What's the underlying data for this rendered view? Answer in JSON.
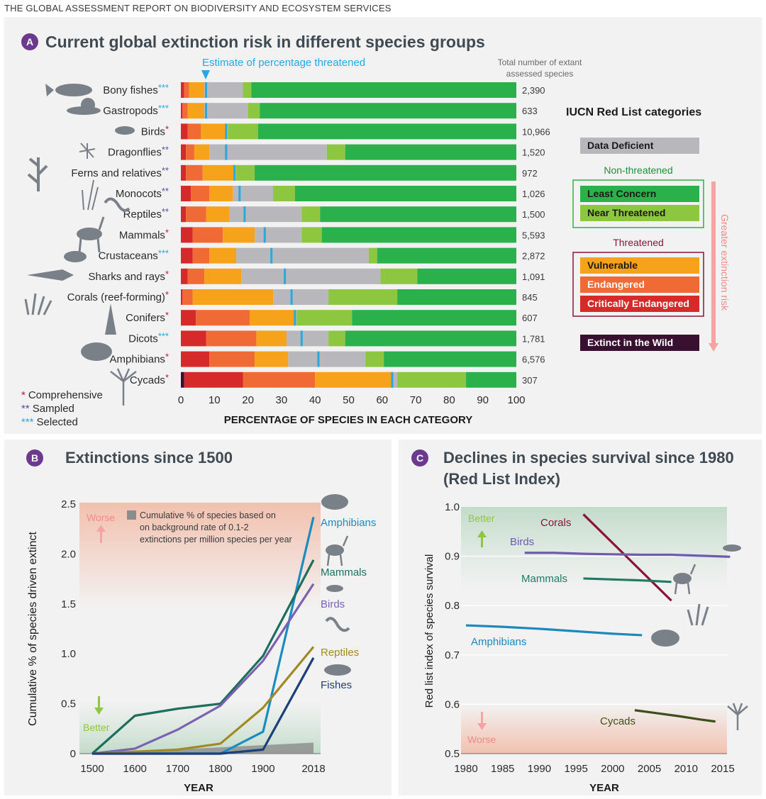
{
  "report_title": "THE GLOBAL ASSESSMENT REPORT ON BIODIVERSITY AND ECOSYSTEM SERVICES",
  "colors": {
    "panel_bg": "#f2f2f2",
    "badge": "#6b3a8e",
    "title": "#3f4a52",
    "data_deficient": "#b8b8bc",
    "least_concern": "#2bb14b",
    "near_threatened": "#8dc63f",
    "vulnerable": "#f7a21b",
    "endangered": "#f06a35",
    "critically_endangered": "#d62a2a",
    "extinct_in_wild": "#3a1030",
    "estimate_marker": "#27a8e0",
    "star_red": "#c0182b",
    "star_purple": "#5b4fa0",
    "star_cyan": "#27a8e0"
  },
  "chart_data": [
    {
      "id": "A",
      "type": "bar",
      "orientation": "horizontal-stacked-100",
      "badge": "A",
      "title": "Current global extinction risk in different species groups",
      "xlabel": "PERCENTAGE OF SPECIES IN EACH CATEGORY",
      "xlim": [
        0,
        100
      ],
      "x_ticks": [
        "0",
        "10",
        "20",
        "30",
        "40",
        "50",
        "60",
        "70",
        "80",
        "90",
        "100"
      ],
      "estimate_label": "Estimate of percentage threatened",
      "count_header": "Total number of extant assessed species",
      "legend_title": "IUCN Red List categories",
      "legend_groups": {
        "non_threatened": "Non-threatened",
        "threatened": "Threatened",
        "risk_axis": "Greater extinction risk"
      },
      "category_keys": [
        "EW",
        "CR",
        "EN",
        "VU",
        "DD",
        "NT",
        "LC"
      ],
      "category_labels": {
        "DD": "Data Deficient",
        "LC": "Least Concern",
        "NT": "Near Threatened",
        "VU": "Vulnerable",
        "EN": "Endangered",
        "CR": "Critically Endangered",
        "EW": "Extinct in the Wild"
      },
      "groups": [
        {
          "name": "Bony fishes",
          "stars": "***",
          "count": "2,390",
          "estimate": 7.5,
          "EW": 0,
          "CR": 1.0,
          "EN": 1.5,
          "VU": 4.5,
          "DD": 11.5,
          "NT": 2.5,
          "LC": 79.0
        },
        {
          "name": "Gastropods",
          "stars": "***",
          "count": "633",
          "estimate": 7.5,
          "EW": 0,
          "CR": 0.5,
          "EN": 1.5,
          "VU": 5.0,
          "DD": 13.0,
          "NT": 3.5,
          "LC": 76.5
        },
        {
          "name": "Birds",
          "stars": "*",
          "count": "10,966",
          "estimate": 13.5,
          "EW": 0,
          "CR": 2.0,
          "EN": 4.0,
          "VU": 7.5,
          "DD": 0.5,
          "NT": 9.0,
          "LC": 77.0
        },
        {
          "name": "Dragonflies",
          "stars": "**",
          "count": "1,520",
          "estimate": 13.5,
          "EW": 0,
          "CR": 1.5,
          "EN": 2.5,
          "VU": 4.5,
          "DD": 35.0,
          "NT": 5.5,
          "LC": 51.0
        },
        {
          "name": "Ferns and relatives",
          "stars": "**",
          "count": "972",
          "estimate": 16.0,
          "EW": 0,
          "CR": 1.5,
          "EN": 5.0,
          "VU": 9.5,
          "DD": 0.5,
          "NT": 5.5,
          "LC": 78.0
        },
        {
          "name": "Monocots",
          "stars": "**",
          "count": "1,026",
          "estimate": 17.5,
          "EW": 0,
          "CR": 3.0,
          "EN": 5.5,
          "VU": 7.0,
          "DD": 12.0,
          "NT": 6.5,
          "LC": 66.0
        },
        {
          "name": "Reptiles",
          "stars": "**",
          "count": "1,500",
          "estimate": 19.0,
          "EW": 0,
          "CR": 1.5,
          "EN": 6.0,
          "VU": 7.0,
          "DD": 21.5,
          "NT": 5.5,
          "LC": 58.5
        },
        {
          "name": "Mammals",
          "stars": "*",
          "count": "5,593",
          "estimate": 25.0,
          "EW": 0,
          "CR": 3.5,
          "EN": 9.0,
          "VU": 9.5,
          "DD": 14.0,
          "NT": 6.0,
          "LC": 58.0
        },
        {
          "name": "Crustaceans",
          "stars": "***",
          "count": "2,872",
          "estimate": 27.0,
          "EW": 0,
          "CR": 3.5,
          "EN": 5.0,
          "VU": 8.0,
          "DD": 39.5,
          "NT": 2.5,
          "LC": 41.5
        },
        {
          "name": "Sharks and rays",
          "stars": "*",
          "count": "1,091",
          "estimate": 31.0,
          "EW": 0,
          "CR": 2.0,
          "EN": 5.0,
          "VU": 11.0,
          "DD": 41.5,
          "NT": 11.0,
          "LC": 29.5
        },
        {
          "name": "Corals (reef-forming)",
          "stars": "*",
          "count": "845",
          "estimate": 33.0,
          "EW": 0,
          "CR": 0.5,
          "EN": 3.0,
          "VU": 24.0,
          "DD": 16.5,
          "NT": 20.5,
          "LC": 35.5
        },
        {
          "name": "Conifers",
          "stars": "*",
          "count": "607",
          "estimate": 34.0,
          "EW": 0,
          "CR": 4.5,
          "EN": 16.0,
          "VU": 13.5,
          "DD": 0.5,
          "NT": 16.5,
          "LC": 49.0
        },
        {
          "name": "Dicots",
          "stars": "***",
          "count": "1,781",
          "estimate": 36.0,
          "EW": 0,
          "CR": 7.5,
          "EN": 15.0,
          "VU": 9.0,
          "DD": 12.5,
          "NT": 5.0,
          "LC": 51.0
        },
        {
          "name": "Amphibians",
          "stars": "*",
          "count": "6,576",
          "estimate": 41.0,
          "EW": 0,
          "CR": 8.5,
          "EN": 13.5,
          "VU": 10.0,
          "DD": 23.0,
          "NT": 5.5,
          "LC": 39.5
        },
        {
          "name": "Cycads",
          "stars": "*",
          "count": "307",
          "estimate": 63.0,
          "EW": 1.0,
          "CR": 17.5,
          "EN": 21.5,
          "VU": 23.0,
          "DD": 1.5,
          "NT": 20.5,
          "LC": 15.0
        }
      ],
      "footnotes": [
        {
          "stars": "*",
          "label": "Comprehensive"
        },
        {
          "stars": "**",
          "label": "Sampled"
        },
        {
          "stars": "***",
          "label": "Selected"
        }
      ]
    },
    {
      "id": "B",
      "type": "line",
      "badge": "B",
      "title": "Extinctions since 1500",
      "xlabel": "YEAR",
      "ylabel": "Cumulative % of species driven extinct",
      "x_ticks": [
        "1500",
        "1600",
        "1700",
        "1800",
        "1900",
        "2018"
      ],
      "y_ticks": [
        "0",
        "0.5",
        "1.0",
        "1.5",
        "2.0",
        "2.5"
      ],
      "ylim": [
        0,
        2.5
      ],
      "worse_label": "Worse",
      "better_label": "Better",
      "background_label": "Cumulative % of species based on on background rate of 0.1-2 extinctions per million species per year",
      "background_band": {
        "x": [
          1500,
          2018
        ],
        "y_end": [
          0.0,
          0.11
        ]
      },
      "series": [
        {
          "name": "Amphibians",
          "color": "#1a8cc0",
          "x": [
            1500,
            1600,
            1700,
            1800,
            1900,
            2018
          ],
          "y": [
            0,
            0,
            0,
            0,
            0.22,
            2.37
          ]
        },
        {
          "name": "Mammals",
          "color": "#1f6e5c",
          "x": [
            1500,
            1600,
            1700,
            1800,
            1900,
            2018
          ],
          "y": [
            0,
            0.38,
            0.45,
            0.5,
            0.98,
            1.94
          ]
        },
        {
          "name": "Birds",
          "color": "#7a62b0",
          "x": [
            1500,
            1600,
            1700,
            1800,
            1900,
            2018
          ],
          "y": [
            0,
            0.05,
            0.24,
            0.48,
            0.93,
            1.7
          ]
        },
        {
          "name": "Reptiles",
          "color": "#a08a25",
          "x": [
            1500,
            1600,
            1700,
            1800,
            1900,
            2018
          ],
          "y": [
            0,
            0.02,
            0.04,
            0.1,
            0.46,
            1.07
          ]
        },
        {
          "name": "Fishes",
          "color": "#1d3f7a",
          "x": [
            1500,
            1600,
            1700,
            1800,
            1900,
            2018
          ],
          "y": [
            0,
            0,
            0,
            0,
            0.04,
            0.96
          ]
        }
      ]
    },
    {
      "id": "C",
      "type": "line",
      "badge": "C",
      "title": "Declines in species survival since 1980",
      "subtitle": "(Red List Index)",
      "xlabel": "YEAR",
      "ylabel": "Red list index of species survival",
      "x_ticks": [
        "1980",
        "1985",
        "1990",
        "1995",
        "2000",
        "2005",
        "2010",
        "2015"
      ],
      "y_ticks": [
        "0.5",
        "0.6",
        "0.7",
        "0.8",
        "0.9",
        "1.0"
      ],
      "xlim": [
        1980,
        2018
      ],
      "ylim": [
        0.5,
        1.0
      ],
      "better_label": "Better",
      "worse_label": "Worse",
      "series": [
        {
          "name": "Corals",
          "color": "#8a1538",
          "x": [
            1996,
            2008
          ],
          "y": [
            0.985,
            0.81
          ]
        },
        {
          "name": "Birds",
          "color": "#6c5bb0",
          "x": [
            1988,
            1992,
            1996,
            2000,
            2004,
            2008,
            2012,
            2016
          ],
          "y": [
            0.907,
            0.907,
            0.905,
            0.904,
            0.903,
            0.903,
            0.901,
            0.899
          ]
        },
        {
          "name": "Mammals",
          "color": "#1f7a63",
          "x": [
            1996,
            2000,
            2004,
            2008
          ],
          "y": [
            0.855,
            0.853,
            0.851,
            0.848
          ]
        },
        {
          "name": "Amphibians",
          "color": "#1c88bd",
          "x": [
            1980,
            1985,
            1990,
            1995,
            2000,
            2004
          ],
          "y": [
            0.76,
            0.757,
            0.753,
            0.748,
            0.743,
            0.74
          ]
        },
        {
          "name": "Cycads",
          "color": "#3d4f1a",
          "x": [
            2003,
            2006,
            2009,
            2012,
            2014
          ],
          "y": [
            0.588,
            0.582,
            0.576,
            0.569,
            0.565
          ]
        }
      ]
    }
  ]
}
